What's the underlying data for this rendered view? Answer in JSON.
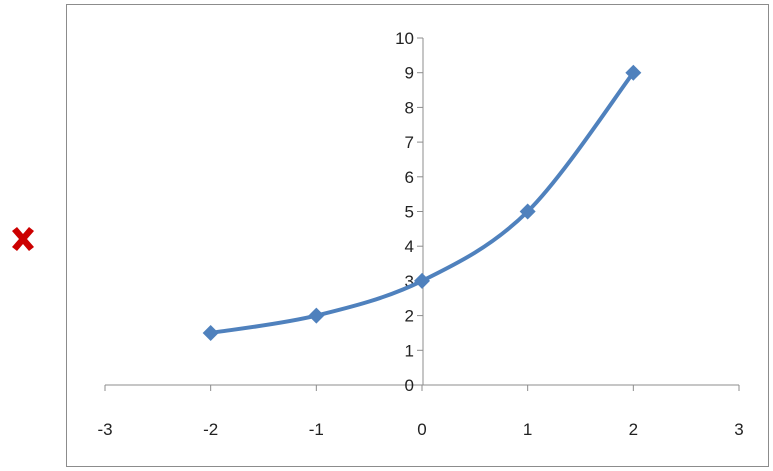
{
  "colors": {
    "series": "#4f81bd",
    "mark": "#cc0000",
    "axis": "#8c8c8c",
    "frame": "#8c8c8c"
  },
  "mark": {
    "icon": "cross-icon"
  },
  "chart_data": {
    "type": "line",
    "smooth": true,
    "marker": "diamond",
    "x": [
      -2,
      -1,
      0,
      1,
      2
    ],
    "series": [
      {
        "values": [
          1.5,
          2,
          3,
          5,
          9
        ]
      }
    ],
    "xlim": [
      -3,
      3
    ],
    "ylim": [
      0,
      10
    ],
    "x_ticks": [
      "-3",
      "-2",
      "-1",
      "0",
      "1",
      "2",
      "3"
    ],
    "y_ticks": [
      "0",
      "1",
      "2",
      "3",
      "4",
      "5",
      "6",
      "7",
      "8",
      "9",
      "10"
    ],
    "grid": false,
    "legend": "none",
    "title": "",
    "xlabel": "",
    "ylabel": ""
  }
}
